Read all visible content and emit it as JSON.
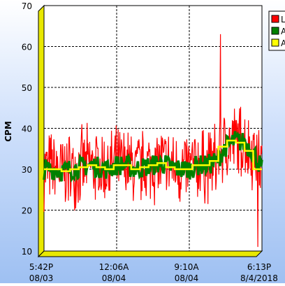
{
  "chart_data": {
    "type": "line",
    "title": "",
    "xlabel": "",
    "ylabel": "CPM",
    "ylim": [
      10,
      70
    ],
    "yticks": [
      10,
      20,
      30,
      40,
      50,
      60,
      70
    ],
    "x_ticks": [
      {
        "time": "5:42P",
        "date": "08/03"
      },
      {
        "time": "12:06A",
        "date": "08/04"
      },
      {
        "time": "9:10A",
        "date": "08/04"
      },
      {
        "time": "6:13P",
        "date": "8/4/2018"
      }
    ],
    "grid": true,
    "legend_position": "top-right",
    "series": [
      {
        "name": "L",
        "color": "#ff0000"
      },
      {
        "name": "A",
        "color": "#008000"
      },
      {
        "name": "A",
        "color": "#ffff00"
      }
    ],
    "trend_hourly_avg": [
      30,
      30,
      29.5,
      30,
      30.5,
      31,
      30.5,
      30,
      31,
      31,
      30,
      30.5,
      31,
      31.5,
      30.5,
      30,
      30,
      31,
      31,
      32,
      35.5,
      37,
      36.5,
      34.5,
      30
    ]
  }
}
